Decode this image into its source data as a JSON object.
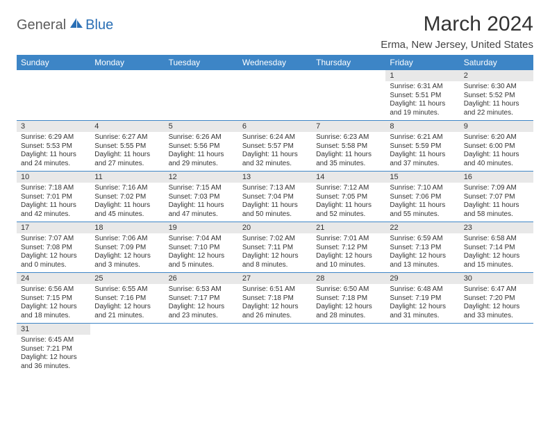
{
  "logo": {
    "general": "General",
    "blue": "Blue"
  },
  "title": "March 2024",
  "location": "Erma, New Jersey, United States",
  "colors": {
    "header_bg": "#3d85c6",
    "header_text": "#ffffff",
    "daynum_bg": "#e8e8e8",
    "border": "#3d85c6",
    "logo_gray": "#5a5a5a",
    "logo_blue": "#2a6fb5"
  },
  "weekdays": [
    "Sunday",
    "Monday",
    "Tuesday",
    "Wednesday",
    "Thursday",
    "Friday",
    "Saturday"
  ],
  "weeks": [
    [
      null,
      null,
      null,
      null,
      null,
      {
        "n": "1",
        "sr": "Sunrise: 6:31 AM",
        "ss": "Sunset: 5:51 PM",
        "d1": "Daylight: 11 hours",
        "d2": "and 19 minutes."
      },
      {
        "n": "2",
        "sr": "Sunrise: 6:30 AM",
        "ss": "Sunset: 5:52 PM",
        "d1": "Daylight: 11 hours",
        "d2": "and 22 minutes."
      }
    ],
    [
      {
        "n": "3",
        "sr": "Sunrise: 6:29 AM",
        "ss": "Sunset: 5:53 PM",
        "d1": "Daylight: 11 hours",
        "d2": "and 24 minutes."
      },
      {
        "n": "4",
        "sr": "Sunrise: 6:27 AM",
        "ss": "Sunset: 5:55 PM",
        "d1": "Daylight: 11 hours",
        "d2": "and 27 minutes."
      },
      {
        "n": "5",
        "sr": "Sunrise: 6:26 AM",
        "ss": "Sunset: 5:56 PM",
        "d1": "Daylight: 11 hours",
        "d2": "and 29 minutes."
      },
      {
        "n": "6",
        "sr": "Sunrise: 6:24 AM",
        "ss": "Sunset: 5:57 PM",
        "d1": "Daylight: 11 hours",
        "d2": "and 32 minutes."
      },
      {
        "n": "7",
        "sr": "Sunrise: 6:23 AM",
        "ss": "Sunset: 5:58 PM",
        "d1": "Daylight: 11 hours",
        "d2": "and 35 minutes."
      },
      {
        "n": "8",
        "sr": "Sunrise: 6:21 AM",
        "ss": "Sunset: 5:59 PM",
        "d1": "Daylight: 11 hours",
        "d2": "and 37 minutes."
      },
      {
        "n": "9",
        "sr": "Sunrise: 6:20 AM",
        "ss": "Sunset: 6:00 PM",
        "d1": "Daylight: 11 hours",
        "d2": "and 40 minutes."
      }
    ],
    [
      {
        "n": "10",
        "sr": "Sunrise: 7:18 AM",
        "ss": "Sunset: 7:01 PM",
        "d1": "Daylight: 11 hours",
        "d2": "and 42 minutes."
      },
      {
        "n": "11",
        "sr": "Sunrise: 7:16 AM",
        "ss": "Sunset: 7:02 PM",
        "d1": "Daylight: 11 hours",
        "d2": "and 45 minutes."
      },
      {
        "n": "12",
        "sr": "Sunrise: 7:15 AM",
        "ss": "Sunset: 7:03 PM",
        "d1": "Daylight: 11 hours",
        "d2": "and 47 minutes."
      },
      {
        "n": "13",
        "sr": "Sunrise: 7:13 AM",
        "ss": "Sunset: 7:04 PM",
        "d1": "Daylight: 11 hours",
        "d2": "and 50 minutes."
      },
      {
        "n": "14",
        "sr": "Sunrise: 7:12 AM",
        "ss": "Sunset: 7:05 PM",
        "d1": "Daylight: 11 hours",
        "d2": "and 52 minutes."
      },
      {
        "n": "15",
        "sr": "Sunrise: 7:10 AM",
        "ss": "Sunset: 7:06 PM",
        "d1": "Daylight: 11 hours",
        "d2": "and 55 minutes."
      },
      {
        "n": "16",
        "sr": "Sunrise: 7:09 AM",
        "ss": "Sunset: 7:07 PM",
        "d1": "Daylight: 11 hours",
        "d2": "and 58 minutes."
      }
    ],
    [
      {
        "n": "17",
        "sr": "Sunrise: 7:07 AM",
        "ss": "Sunset: 7:08 PM",
        "d1": "Daylight: 12 hours",
        "d2": "and 0 minutes."
      },
      {
        "n": "18",
        "sr": "Sunrise: 7:06 AM",
        "ss": "Sunset: 7:09 PM",
        "d1": "Daylight: 12 hours",
        "d2": "and 3 minutes."
      },
      {
        "n": "19",
        "sr": "Sunrise: 7:04 AM",
        "ss": "Sunset: 7:10 PM",
        "d1": "Daylight: 12 hours",
        "d2": "and 5 minutes."
      },
      {
        "n": "20",
        "sr": "Sunrise: 7:02 AM",
        "ss": "Sunset: 7:11 PM",
        "d1": "Daylight: 12 hours",
        "d2": "and 8 minutes."
      },
      {
        "n": "21",
        "sr": "Sunrise: 7:01 AM",
        "ss": "Sunset: 7:12 PM",
        "d1": "Daylight: 12 hours",
        "d2": "and 10 minutes."
      },
      {
        "n": "22",
        "sr": "Sunrise: 6:59 AM",
        "ss": "Sunset: 7:13 PM",
        "d1": "Daylight: 12 hours",
        "d2": "and 13 minutes."
      },
      {
        "n": "23",
        "sr": "Sunrise: 6:58 AM",
        "ss": "Sunset: 7:14 PM",
        "d1": "Daylight: 12 hours",
        "d2": "and 15 minutes."
      }
    ],
    [
      {
        "n": "24",
        "sr": "Sunrise: 6:56 AM",
        "ss": "Sunset: 7:15 PM",
        "d1": "Daylight: 12 hours",
        "d2": "and 18 minutes."
      },
      {
        "n": "25",
        "sr": "Sunrise: 6:55 AM",
        "ss": "Sunset: 7:16 PM",
        "d1": "Daylight: 12 hours",
        "d2": "and 21 minutes."
      },
      {
        "n": "26",
        "sr": "Sunrise: 6:53 AM",
        "ss": "Sunset: 7:17 PM",
        "d1": "Daylight: 12 hours",
        "d2": "and 23 minutes."
      },
      {
        "n": "27",
        "sr": "Sunrise: 6:51 AM",
        "ss": "Sunset: 7:18 PM",
        "d1": "Daylight: 12 hours",
        "d2": "and 26 minutes."
      },
      {
        "n": "28",
        "sr": "Sunrise: 6:50 AM",
        "ss": "Sunset: 7:18 PM",
        "d1": "Daylight: 12 hours",
        "d2": "and 28 minutes."
      },
      {
        "n": "29",
        "sr": "Sunrise: 6:48 AM",
        "ss": "Sunset: 7:19 PM",
        "d1": "Daylight: 12 hours",
        "d2": "and 31 minutes."
      },
      {
        "n": "30",
        "sr": "Sunrise: 6:47 AM",
        "ss": "Sunset: 7:20 PM",
        "d1": "Daylight: 12 hours",
        "d2": "and 33 minutes."
      }
    ],
    [
      {
        "n": "31",
        "sr": "Sunrise: 6:45 AM",
        "ss": "Sunset: 7:21 PM",
        "d1": "Daylight: 12 hours",
        "d2": "and 36 minutes."
      },
      null,
      null,
      null,
      null,
      null,
      null
    ]
  ]
}
